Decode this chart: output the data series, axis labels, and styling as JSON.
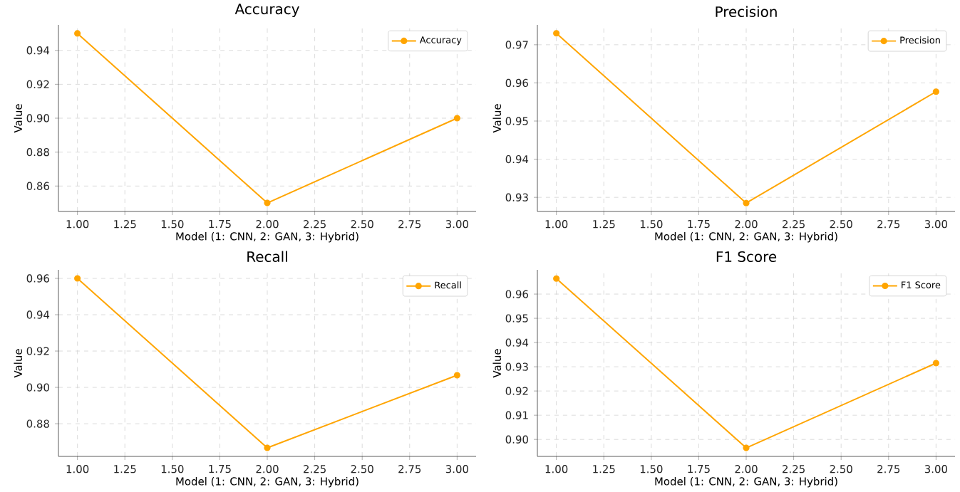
{
  "chart_data": [
    {
      "type": "line",
      "title": "Accuracy",
      "xlabel": "Model (1: CNN, 2: GAN, 3: Hybrid)",
      "ylabel": "Value",
      "x": [
        1,
        2,
        3
      ],
      "series": [
        {
          "name": "Accuracy",
          "color": "#ffa500",
          "values": [
            0.95,
            0.85,
            0.9
          ]
        }
      ],
      "xlim": [
        0.9,
        3.1
      ],
      "ylim": [
        0.845,
        0.955
      ],
      "xticks": [
        {
          "value": 1,
          "label": "1.00"
        },
        {
          "value": 1.25,
          "label": "1.25"
        },
        {
          "value": 1.5,
          "label": "1.50"
        },
        {
          "value": 1.75,
          "label": "1.75"
        },
        {
          "value": 2,
          "label": "2.00"
        },
        {
          "value": 2.25,
          "label": "2.25"
        },
        {
          "value": 2.5,
          "label": "2.50"
        },
        {
          "value": 2.75,
          "label": "2.75"
        },
        {
          "value": 3,
          "label": "3.00"
        }
      ],
      "yticks": [
        {
          "value": 0.86,
          "label": "0.86"
        },
        {
          "value": 0.88,
          "label": "0.88"
        },
        {
          "value": 0.9,
          "label": "0.90"
        },
        {
          "value": 0.92,
          "label": "0.92"
        },
        {
          "value": 0.94,
          "label": "0.94"
        }
      ],
      "grid": true,
      "legend": "top right",
      "marker": "circle"
    },
    {
      "type": "line",
      "title": "Precision",
      "xlabel": "Model (1: CNN, 2: GAN, 3: Hybrid)",
      "ylabel": "Value",
      "x": [
        1,
        2,
        3
      ],
      "series": [
        {
          "name": "Precision",
          "color": "#ffa500",
          "values": [
            0.973,
            0.9285,
            0.9577
          ]
        }
      ],
      "xlim": [
        0.9,
        3.1
      ],
      "ylim": [
        0.9263,
        0.9752
      ],
      "xticks": [
        {
          "value": 1,
          "label": "1.00"
        },
        {
          "value": 1.25,
          "label": "1.25"
        },
        {
          "value": 1.5,
          "label": "1.50"
        },
        {
          "value": 1.75,
          "label": "1.75"
        },
        {
          "value": 2,
          "label": "2.00"
        },
        {
          "value": 2.25,
          "label": "2.25"
        },
        {
          "value": 2.5,
          "label": "2.50"
        },
        {
          "value": 2.75,
          "label": "2.75"
        },
        {
          "value": 3,
          "label": "3.00"
        }
      ],
      "yticks": [
        {
          "value": 0.93,
          "label": "0.93"
        },
        {
          "value": 0.94,
          "label": "0.94"
        },
        {
          "value": 0.95,
          "label": "0.95"
        },
        {
          "value": 0.96,
          "label": "0.96"
        },
        {
          "value": 0.97,
          "label": "0.97"
        }
      ],
      "grid": true,
      "legend": "top right",
      "marker": "circle"
    },
    {
      "type": "line",
      "title": "Recall",
      "xlabel": "Model (1: CNN, 2: GAN, 3: Hybrid)",
      "ylabel": "Value",
      "x": [
        1,
        2,
        3
      ],
      "series": [
        {
          "name": "Recall",
          "color": "#ffa500",
          "values": [
            0.96,
            0.8667,
            0.9067
          ]
        }
      ],
      "xlim": [
        0.9,
        3.1
      ],
      "ylim": [
        0.862,
        0.9647
      ],
      "xticks": [
        {
          "value": 1,
          "label": "1.00"
        },
        {
          "value": 1.25,
          "label": "1.25"
        },
        {
          "value": 1.5,
          "label": "1.50"
        },
        {
          "value": 1.75,
          "label": "1.75"
        },
        {
          "value": 2,
          "label": "2.00"
        },
        {
          "value": 2.25,
          "label": "2.25"
        },
        {
          "value": 2.5,
          "label": "2.50"
        },
        {
          "value": 2.75,
          "label": "2.75"
        },
        {
          "value": 3,
          "label": "3.00"
        }
      ],
      "yticks": [
        {
          "value": 0.88,
          "label": "0.88"
        },
        {
          "value": 0.9,
          "label": "0.90"
        },
        {
          "value": 0.92,
          "label": "0.92"
        },
        {
          "value": 0.94,
          "label": "0.94"
        },
        {
          "value": 0.96,
          "label": "0.96"
        }
      ],
      "grid": true,
      "legend": "top right",
      "marker": "circle"
    },
    {
      "type": "line",
      "title": "F1 Score",
      "xlabel": "Model (1: CNN, 2: GAN, 3: Hybrid)",
      "ylabel": "Value",
      "x": [
        1,
        2,
        3
      ],
      "series": [
        {
          "name": "F1 Score",
          "color": "#ffa500",
          "values": [
            0.9664,
            0.8965,
            0.9315
          ]
        }
      ],
      "xlim": [
        0.9,
        3.1
      ],
      "ylim": [
        0.893,
        0.97
      ],
      "xticks": [
        {
          "value": 1,
          "label": "1.00"
        },
        {
          "value": 1.25,
          "label": "1.25"
        },
        {
          "value": 1.5,
          "label": "1.50"
        },
        {
          "value": 1.75,
          "label": "1.75"
        },
        {
          "value": 2,
          "label": "2.00"
        },
        {
          "value": 2.25,
          "label": "2.25"
        },
        {
          "value": 2.5,
          "label": "2.50"
        },
        {
          "value": 2.75,
          "label": "2.75"
        },
        {
          "value": 3,
          "label": "3.00"
        }
      ],
      "yticks": [
        {
          "value": 0.9,
          "label": "0.90"
        },
        {
          "value": 0.91,
          "label": "0.91"
        },
        {
          "value": 0.92,
          "label": "0.92"
        },
        {
          "value": 0.93,
          "label": "0.93"
        },
        {
          "value": 0.94,
          "label": "0.94"
        },
        {
          "value": 0.95,
          "label": "0.95"
        },
        {
          "value": 0.96,
          "label": "0.96"
        }
      ],
      "grid": true,
      "legend": "top right",
      "marker": "circle"
    }
  ]
}
